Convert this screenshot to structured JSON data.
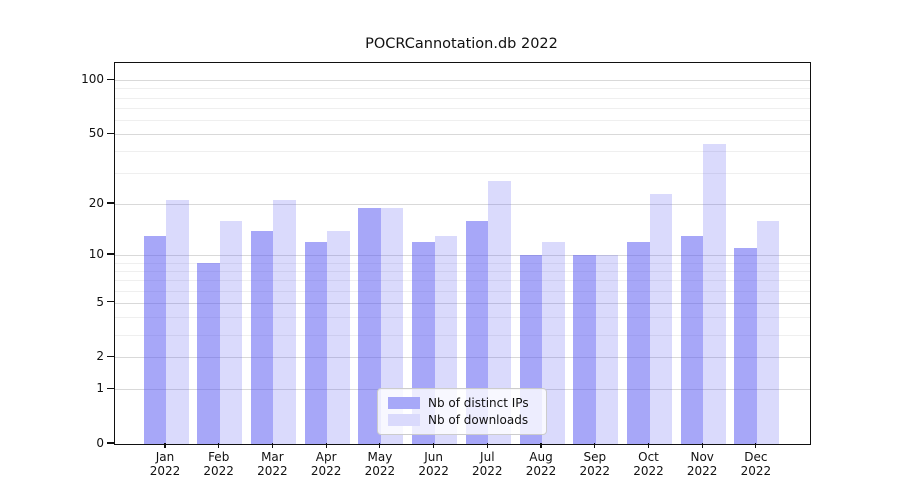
{
  "title": "POCRCannotation.db 2022",
  "chart_data": {
    "type": "bar",
    "title": "POCRCannotation.db 2022",
    "categories": [
      "Jan",
      "Feb",
      "Mar",
      "Apr",
      "May",
      "Jun",
      "Jul",
      "Aug",
      "Sep",
      "Oct",
      "Nov",
      "Dec"
    ],
    "category_year": "2022",
    "series": [
      {
        "name": "Nb of distinct IPs",
        "color": "#a7a8f8",
        "values": [
          13,
          9,
          14,
          12,
          19,
          12,
          16,
          10,
          10,
          12,
          13,
          11
        ]
      },
      {
        "name": "Nb of downloads",
        "color": "#dadafc",
        "values": [
          21,
          16,
          21,
          14,
          19,
          13,
          27,
          12,
          10,
          23,
          44,
          16
        ]
      }
    ],
    "xlabel": "",
    "ylabel": "",
    "yscale": "log1p",
    "yticks": [
      0,
      1,
      2,
      5,
      10,
      20,
      50,
      100
    ],
    "yticks_minor": [
      3,
      4,
      6,
      7,
      8,
      9,
      30,
      40,
      60,
      70,
      80,
      90
    ],
    "ylim": [
      0,
      128
    ],
    "grid": "on",
    "legend_position": "inside lower center"
  }
}
